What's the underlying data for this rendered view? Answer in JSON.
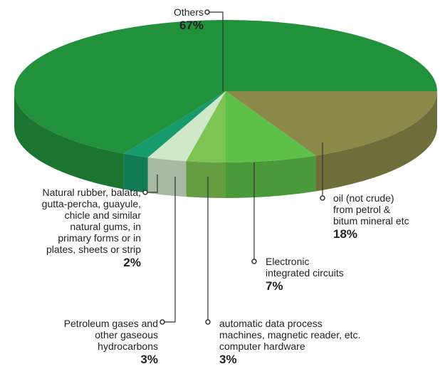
{
  "chart_data": {
    "type": "pie3d",
    "categories": [
      "oil (not crude)\nfrom petrol &\nbitum mineral etc",
      "Electronic\nintegrated circuits",
      "automatic data process\nmachines, magnetic reader, etc.\ncomputer hardware",
      "Petroleum gases and\nother gaseous\nhydrocarbons",
      "Natural rubber, balata,\ngutta-percha, guayule,\nchicle and similar\nnatural gums, in\nprimary forms or in\nplates, sheets or strip",
      "Others"
    ],
    "values": [
      18,
      7,
      3,
      3,
      2,
      67
    ],
    "value_labels": [
      "18%",
      "7%",
      "3%",
      "3%",
      "2%",
      "67%"
    ],
    "colors": [
      "#8b8a48",
      "#5cc04a",
      "#7dc453",
      "#cfe8c9",
      "#179a6c",
      "#22913b"
    ]
  }
}
